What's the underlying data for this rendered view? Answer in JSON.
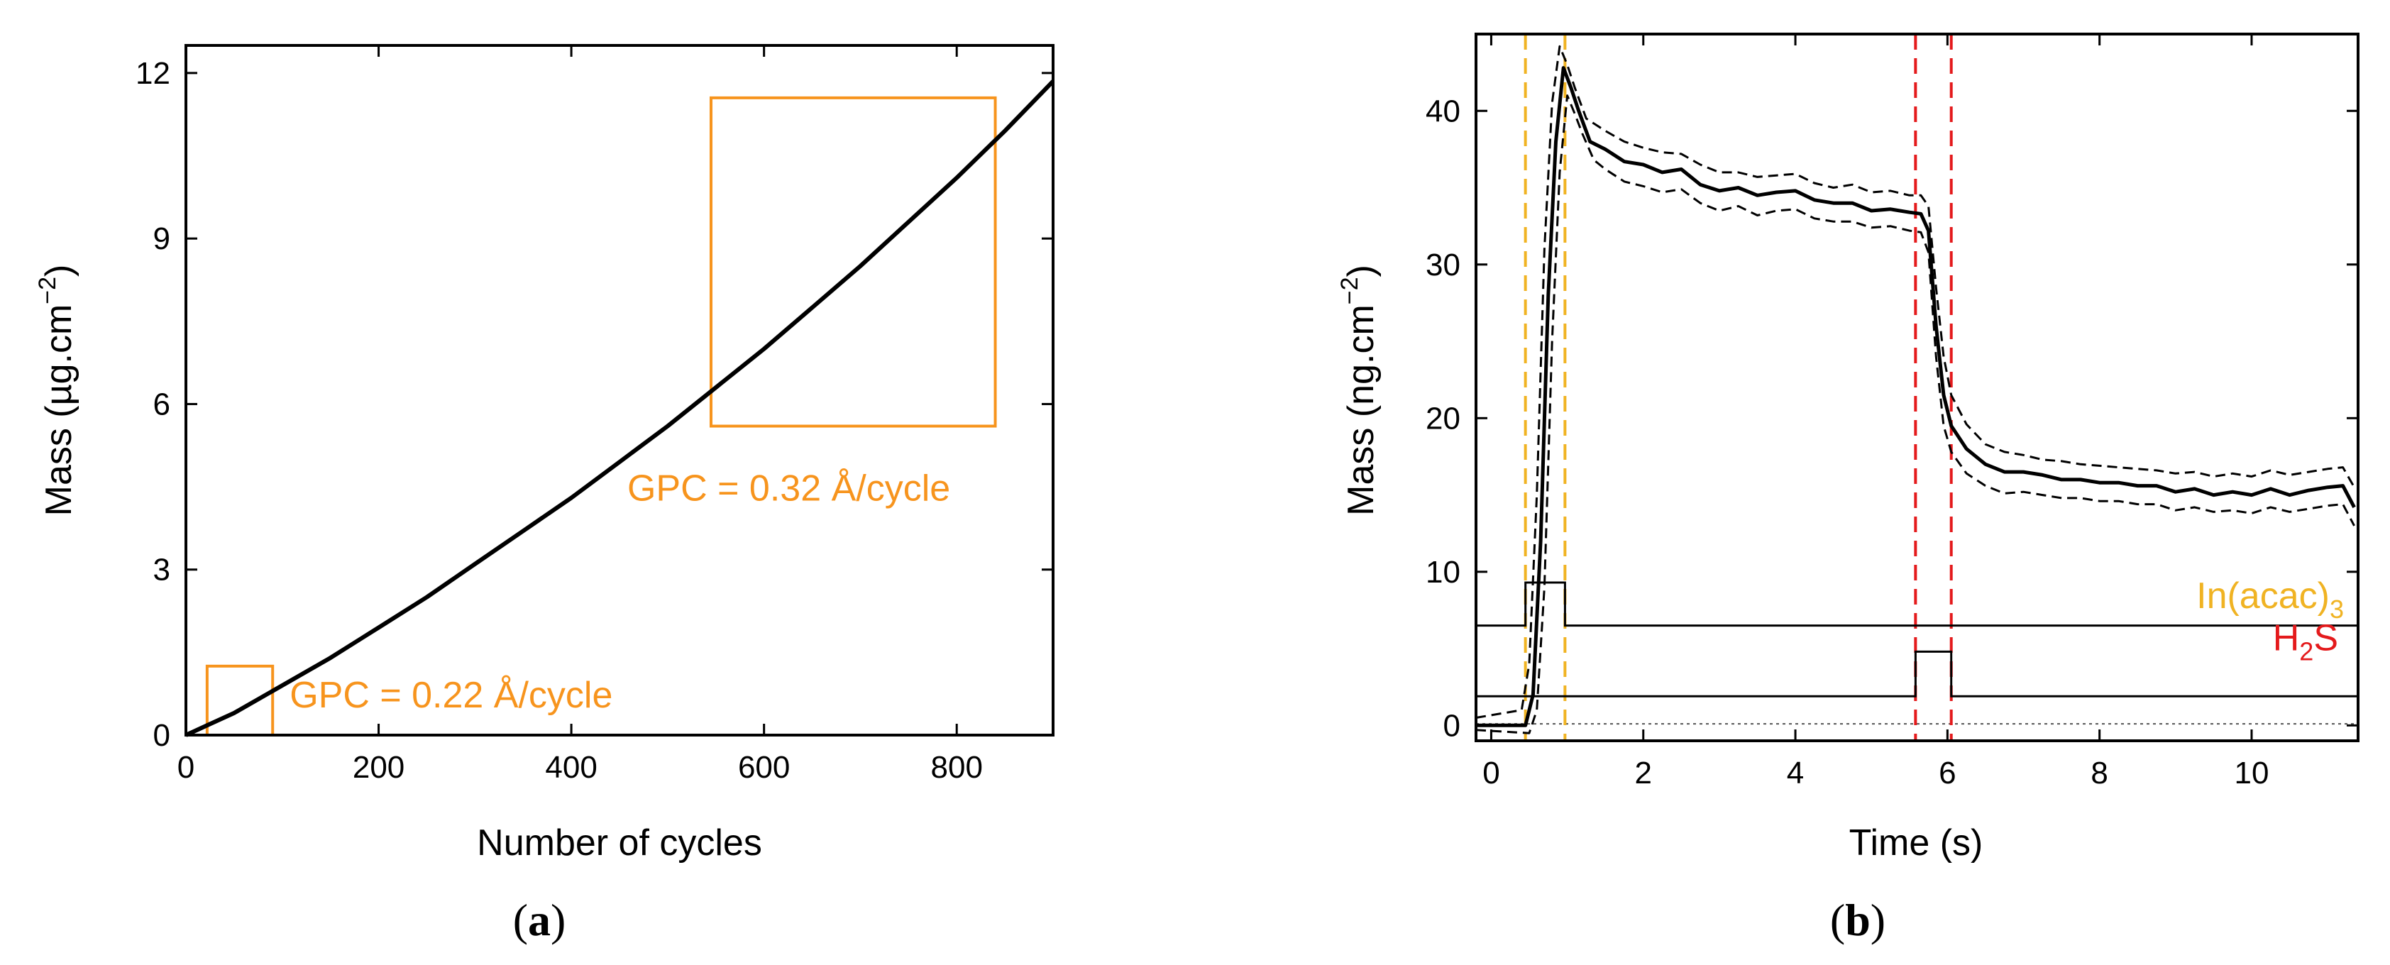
{
  "colors": {
    "orange": "#F7941D",
    "gold": "#F0B323",
    "red": "#E41A1C",
    "black": "#000000"
  },
  "chart_data": [
    {
      "panel": "a",
      "type": "line",
      "label_open": "(",
      "label_letter": "a",
      "label_close": ")",
      "xlabel": "Number of cycles",
      "ylabel_text": "Mass (µg.cm",
      "ylabel_sup": "−2",
      "ylabel_close": ")",
      "xlim": [
        0,
        900
      ],
      "ylim": [
        0,
        12.5
      ],
      "xticks": [
        0,
        200,
        400,
        600,
        800
      ],
      "yticks": [
        0,
        3,
        6,
        9,
        12
      ],
      "series": [
        {
          "name": "mass",
          "color": "#000000",
          "x": [
            0,
            25,
            50,
            100,
            150,
            200,
            250,
            300,
            350,
            400,
            450,
            500,
            550,
            600,
            650,
            700,
            750,
            800,
            850,
            900
          ],
          "y": [
            0.0,
            0.2,
            0.4,
            0.9,
            1.4,
            1.95,
            2.5,
            3.1,
            3.7,
            4.3,
            4.95,
            5.6,
            6.3,
            7.0,
            7.75,
            8.5,
            9.3,
            10.1,
            10.95,
            11.85
          ]
        }
      ],
      "annotations": [
        {
          "text": "GPC = 0.22 Å/cycle",
          "box": {
            "x0": 22,
            "x1": 90,
            "y0": 0,
            "y1": 1.25
          }
        },
        {
          "text": "GPC = 0.32 Å/cycle",
          "box": {
            "x0": 545,
            "x1": 840,
            "y0": 5.6,
            "y1": 11.55
          }
        }
      ]
    },
    {
      "panel": "b",
      "type": "line",
      "label_open": "(",
      "label_letter": "b",
      "label_close": ")",
      "xlabel": "Time (s)",
      "ylabel_text": "Mass (ng.cm",
      "ylabel_sup": "−2",
      "ylabel_close": ")",
      "xlim": [
        -0.2,
        11.4
      ],
      "ylim": [
        -1,
        45
      ],
      "xticks": [
        0,
        2,
        4,
        6,
        8,
        10
      ],
      "yticks": [
        0,
        10,
        20,
        30,
        40
      ],
      "series": [
        {
          "name": "mean",
          "style": "solid",
          "x": [
            -0.2,
            0.45,
            0.55,
            0.65,
            0.75,
            0.85,
            0.95,
            1.05,
            1.15,
            1.3,
            1.5,
            1.75,
            2.0,
            2.25,
            2.5,
            2.75,
            3.0,
            3.25,
            3.5,
            3.75,
            4.0,
            4.25,
            4.5,
            4.75,
            5.0,
            5.25,
            5.5,
            5.65,
            5.75,
            5.85,
            5.95,
            6.05,
            6.25,
            6.5,
            6.75,
            7.0,
            7.25,
            7.5,
            7.75,
            8.0,
            8.25,
            8.5,
            8.75,
            9.0,
            9.25,
            9.5,
            9.75,
            10.0,
            10.25,
            10.5,
            10.75,
            11.0,
            11.2,
            11.35
          ],
          "y": [
            0,
            0,
            2,
            12,
            28,
            38,
            42.8,
            41.5,
            40.0,
            38.0,
            37.5,
            36.7,
            36.5,
            36.0,
            36.2,
            35.2,
            34.8,
            35.0,
            34.5,
            34.7,
            34.8,
            34.2,
            34.0,
            34.0,
            33.5,
            33.6,
            33.4,
            33.3,
            32.2,
            26.0,
            21.5,
            19.5,
            18.0,
            17.0,
            16.5,
            16.5,
            16.3,
            16.0,
            16.0,
            15.8,
            15.8,
            15.6,
            15.6,
            15.2,
            15.4,
            15.0,
            15.2,
            15.0,
            15.4,
            15.0,
            15.3,
            15.5,
            15.6,
            14.2
          ]
        },
        {
          "name": "upper bound",
          "style": "dashed",
          "x": [
            -0.2,
            0.4,
            0.5,
            0.6,
            0.7,
            0.8,
            0.9,
            1.0,
            1.1,
            1.25,
            1.5,
            1.75,
            2.0,
            2.25,
            2.5,
            2.75,
            3.0,
            3.25,
            3.5,
            3.75,
            4.0,
            4.25,
            4.5,
            4.75,
            5.0,
            5.25,
            5.5,
            5.65,
            5.75,
            5.85,
            5.95,
            6.05,
            6.25,
            6.5,
            6.75,
            7.0,
            7.25,
            7.5,
            7.75,
            8.0,
            8.25,
            8.5,
            8.75,
            9.0,
            9.25,
            9.5,
            9.75,
            10.0,
            10.25,
            10.5,
            10.75,
            11.0,
            11.2,
            11.35
          ],
          "y": [
            0.5,
            1.0,
            4,
            15,
            31,
            40.5,
            44.2,
            43.0,
            41.5,
            39.5,
            38.7,
            38.0,
            37.6,
            37.3,
            37.2,
            36.5,
            36.0,
            36.0,
            35.7,
            35.8,
            35.9,
            35.3,
            35.0,
            35.2,
            34.7,
            34.8,
            34.5,
            34.5,
            33.8,
            28.5,
            24.0,
            21.5,
            19.6,
            18.3,
            17.8,
            17.6,
            17.3,
            17.2,
            17.0,
            16.9,
            16.8,
            16.7,
            16.6,
            16.4,
            16.5,
            16.2,
            16.4,
            16.2,
            16.6,
            16.3,
            16.5,
            16.7,
            16.8,
            15.5
          ]
        },
        {
          "name": "lower bound",
          "style": "dashed",
          "x": [
            -0.2,
            0.5,
            0.6,
            0.7,
            0.8,
            0.9,
            1.0,
            1.1,
            1.2,
            1.35,
            1.5,
            1.75,
            2.0,
            2.25,
            2.5,
            2.75,
            3.0,
            3.25,
            3.5,
            3.75,
            4.0,
            4.25,
            4.5,
            4.75,
            5.0,
            5.25,
            5.5,
            5.65,
            5.75,
            5.85,
            5.95,
            6.05,
            6.25,
            6.5,
            6.75,
            7.0,
            7.25,
            7.5,
            7.75,
            8.0,
            8.25,
            8.5,
            8.75,
            9.0,
            9.25,
            9.5,
            9.75,
            10.0,
            10.25,
            10.5,
            10.75,
            11.0,
            11.2,
            11.35
          ],
          "y": [
            -0.3,
            -0.5,
            1.0,
            9,
            25,
            36,
            41.0,
            39.8,
            38.5,
            36.8,
            36.2,
            35.4,
            35.1,
            34.7,
            34.9,
            34.0,
            33.5,
            33.8,
            33.2,
            33.5,
            33.6,
            33.0,
            32.8,
            32.8,
            32.4,
            32.5,
            32.2,
            32.1,
            30.8,
            24.0,
            19.5,
            17.8,
            16.4,
            15.6,
            15.1,
            15.2,
            15.0,
            14.8,
            14.8,
            14.6,
            14.6,
            14.4,
            14.4,
            14.0,
            14.2,
            13.9,
            14.0,
            13.8,
            14.2,
            13.9,
            14.1,
            14.3,
            14.4,
            13.0
          ]
        }
      ],
      "pulses": [
        {
          "label_base": "In(acac)",
          "label_sub": "3",
          "base": 6.5,
          "top": 9.3,
          "start": 0.45,
          "end": 0.97,
          "label_color": "#F0B323"
        },
        {
          "label_base": "H",
          "label_sub": "2",
          "label_rest": "S",
          "base": 1.9,
          "top": 4.8,
          "start": 5.58,
          "end": 6.05,
          "label_color": "#E41A1C"
        }
      ],
      "zero_line": 0.1,
      "vlines": [
        {
          "x": 0.45,
          "color": "#F0B323"
        },
        {
          "x": 0.97,
          "color": "#F0B323"
        },
        {
          "x": 5.58,
          "color": "#E41A1C"
        },
        {
          "x": 6.05,
          "color": "#E41A1C"
        }
      ]
    }
  ]
}
